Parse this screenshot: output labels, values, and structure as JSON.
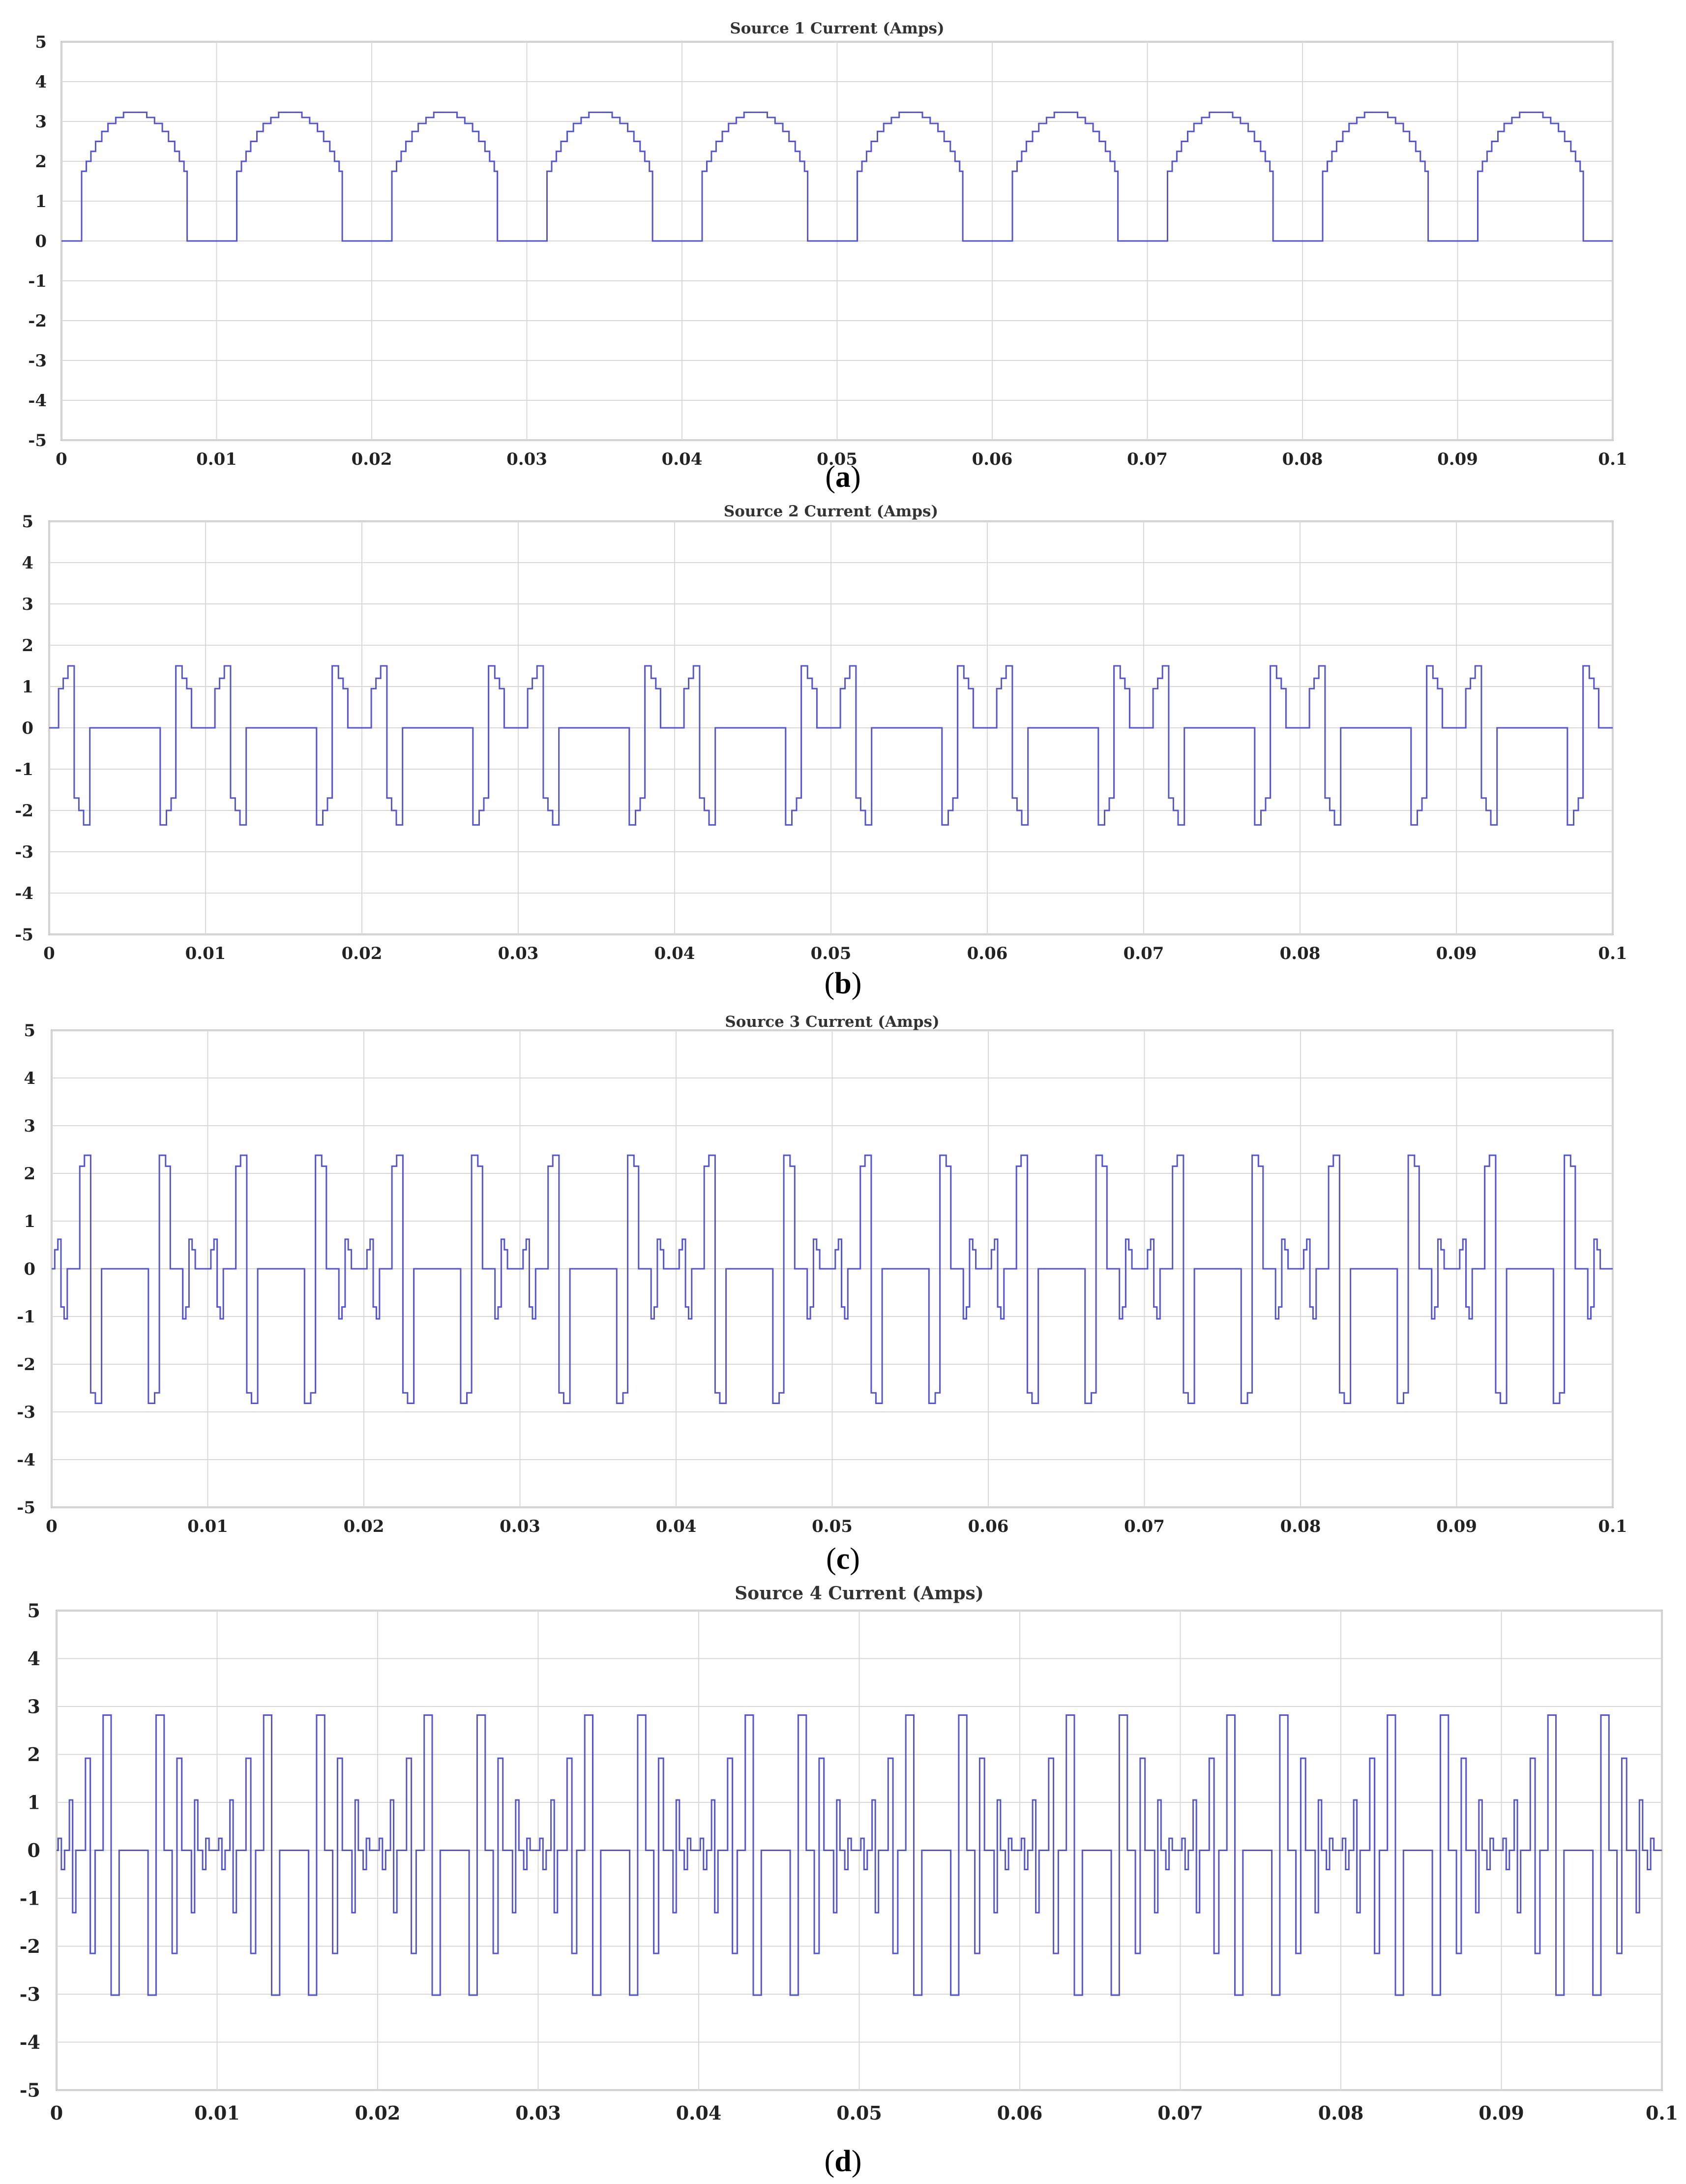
{
  "figure": {
    "captions": [
      "a",
      "b",
      "c",
      "d"
    ]
  },
  "chart_data": [
    {
      "type": "line",
      "title": "Source 1 Current (Amps)",
      "xlabel": "",
      "ylabel": "",
      "xlim": [
        0,
        0.1
      ],
      "ylim": [
        -5,
        5
      ],
      "grid": true,
      "x_ticks": [
        "0",
        "0.01",
        "0.02",
        "0.03",
        "0.04",
        "0.05",
        "0.06",
        "0.07",
        "0.08",
        "0.09",
        "0.1"
      ],
      "y_ticks": [
        "5",
        "4",
        "3",
        "2",
        "1",
        "0",
        "-1",
        "-2",
        "-3",
        "-4",
        "-5"
      ],
      "line_color": "#5555cc",
      "period": 0.01,
      "series": [
        {
          "name": "",
          "period_points": [
            [
              0,
              0
            ],
            [
              0.0013,
              0
            ],
            [
              0.0013,
              1.75
            ],
            [
              0.0016,
              1.75
            ],
            [
              0.0016,
              2.0
            ],
            [
              0.0019,
              2.0
            ],
            [
              0.0019,
              2.25
            ],
            [
              0.0022,
              2.25
            ],
            [
              0.0022,
              2.5
            ],
            [
              0.0026,
              2.5
            ],
            [
              0.0026,
              2.75
            ],
            [
              0.003,
              2.75
            ],
            [
              0.003,
              2.95
            ],
            [
              0.0035,
              2.95
            ],
            [
              0.0035,
              3.1
            ],
            [
              0.004,
              3.1
            ],
            [
              0.004,
              3.23
            ],
            [
              0.0055,
              3.23
            ],
            [
              0.0055,
              3.1
            ],
            [
              0.006,
              3.1
            ],
            [
              0.006,
              2.95
            ],
            [
              0.0065,
              2.95
            ],
            [
              0.0065,
              2.75
            ],
            [
              0.0069,
              2.75
            ],
            [
              0.0069,
              2.5
            ],
            [
              0.0073,
              2.5
            ],
            [
              0.0073,
              2.25
            ],
            [
              0.0076,
              2.25
            ],
            [
              0.0076,
              2.0
            ],
            [
              0.0079,
              2.0
            ],
            [
              0.0079,
              1.75
            ],
            [
              0.0081,
              1.75
            ],
            [
              0.0081,
              0
            ],
            [
              0.01,
              0
            ]
          ]
        }
      ]
    },
    {
      "type": "line",
      "title": "Source 2 Current (Amps)",
      "xlabel": "",
      "ylabel": "",
      "xlim": [
        0,
        0.1
      ],
      "ylim": [
        -5,
        5
      ],
      "grid": true,
      "x_ticks": [
        "0",
        "0.01",
        "0.02",
        "0.03",
        "0.04",
        "0.05",
        "0.06",
        "0.07",
        "0.08",
        "0.09",
        "0.1"
      ],
      "y_ticks": [
        "5",
        "4",
        "3",
        "2",
        "1",
        "0",
        "-1",
        "-2",
        "-3",
        "-4",
        "-5"
      ],
      "line_color": "#5555cc",
      "period": 0.01,
      "series": [
        {
          "name": "",
          "period_points": [
            [
              0,
              0
            ],
            [
              0.0006,
              0
            ],
            [
              0.0006,
              0.95
            ],
            [
              0.0009,
              0.95
            ],
            [
              0.0009,
              1.2
            ],
            [
              0.0012,
              1.2
            ],
            [
              0.0012,
              1.5
            ],
            [
              0.0016,
              1.5
            ],
            [
              0.0016,
              -1.7
            ],
            [
              0.0019,
              -1.7
            ],
            [
              0.0019,
              -2.0
            ],
            [
              0.0022,
              -2.0
            ],
            [
              0.0022,
              -2.35
            ],
            [
              0.0026,
              -2.35
            ],
            [
              0.0026,
              0
            ],
            [
              0.0071,
              0
            ],
            [
              0.0071,
              -2.35
            ],
            [
              0.0075,
              -2.35
            ],
            [
              0.0075,
              -2.0
            ],
            [
              0.0078,
              -2.0
            ],
            [
              0.0078,
              -1.7
            ],
            [
              0.0081,
              -1.7
            ],
            [
              0.0081,
              1.5
            ],
            [
              0.0085,
              1.5
            ],
            [
              0.0085,
              1.2
            ],
            [
              0.0088,
              1.2
            ],
            [
              0.0088,
              0.95
            ],
            [
              0.0091,
              0.95
            ],
            [
              0.0091,
              0
            ],
            [
              0.01,
              0
            ]
          ]
        }
      ]
    },
    {
      "type": "line",
      "title": "Source 3 Current (Amps)",
      "xlabel": "",
      "ylabel": "",
      "xlim": [
        0,
        0.1
      ],
      "ylim": [
        -5,
        5
      ],
      "grid": true,
      "x_ticks": [
        "0",
        "0.01",
        "0.02",
        "0.03",
        "0.04",
        "0.05",
        "0.06",
        "0.07",
        "0.08",
        "0.09",
        "0.1"
      ],
      "y_ticks": [
        "5",
        "4",
        "3",
        "2",
        "1",
        "0",
        "-1",
        "-2",
        "-3",
        "-4",
        "-5"
      ],
      "line_color": "#5555cc",
      "period": 0.01,
      "series": [
        {
          "name": "",
          "period_points": [
            [
              0,
              0
            ],
            [
              0.0002,
              0
            ],
            [
              0.0002,
              0.4
            ],
            [
              0.0004,
              0.4
            ],
            [
              0.0004,
              0.62
            ],
            [
              0.0006,
              0.62
            ],
            [
              0.0006,
              -0.8
            ],
            [
              0.0008,
              -0.8
            ],
            [
              0.0008,
              -1.05
            ],
            [
              0.001,
              -1.05
            ],
            [
              0.001,
              0
            ],
            [
              0.0018,
              0
            ],
            [
              0.0018,
              2.15
            ],
            [
              0.0021,
              2.15
            ],
            [
              0.0021,
              2.38
            ],
            [
              0.0025,
              2.38
            ],
            [
              0.0025,
              -2.6
            ],
            [
              0.0028,
              -2.6
            ],
            [
              0.0028,
              -2.82
            ],
            [
              0.0032,
              -2.82
            ],
            [
              0.0032,
              0
            ],
            [
              0.0062,
              0
            ],
            [
              0.0062,
              -2.82
            ],
            [
              0.0066,
              -2.82
            ],
            [
              0.0066,
              -2.6
            ],
            [
              0.0069,
              -2.6
            ],
            [
              0.0069,
              2.38
            ],
            [
              0.0073,
              2.38
            ],
            [
              0.0073,
              2.15
            ],
            [
              0.0076,
              2.15
            ],
            [
              0.0076,
              0
            ],
            [
              0.0084,
              0
            ],
            [
              0.0084,
              -1.05
            ],
            [
              0.0086,
              -1.05
            ],
            [
              0.0086,
              -0.8
            ],
            [
              0.0088,
              -0.8
            ],
            [
              0.0088,
              0.62
            ],
            [
              0.009,
              0.62
            ],
            [
              0.009,
              0.4
            ],
            [
              0.0092,
              0.4
            ],
            [
              0.0092,
              0
            ],
            [
              0.01,
              0
            ]
          ]
        }
      ]
    },
    {
      "type": "line",
      "title": "Source 4 Current (Amps)",
      "xlabel": "",
      "ylabel": "",
      "xlim": [
        0,
        0.1
      ],
      "ylim": [
        -5,
        5
      ],
      "grid": true,
      "x_ticks": [
        "0",
        "0.01",
        "0.02",
        "0.03",
        "0.04",
        "0.05",
        "0.06",
        "0.07",
        "0.08",
        "0.09",
        "0.1"
      ],
      "y_ticks": [
        "5",
        "4",
        "3",
        "2",
        "1",
        "0",
        "-1",
        "-2",
        "-3",
        "-4",
        "-5"
      ],
      "line_color": "#5555cc",
      "period": 0.01,
      "series": [
        {
          "name": "",
          "period_points": [
            [
              0,
              0
            ],
            [
              0.0001,
              0
            ],
            [
              0.0001,
              0.25
            ],
            [
              0.0003,
              0.25
            ],
            [
              0.0003,
              -0.4
            ],
            [
              0.0005,
              -0.4
            ],
            [
              0.0005,
              0
            ],
            [
              0.0008,
              0
            ],
            [
              0.0008,
              1.05
            ],
            [
              0.001,
              1.05
            ],
            [
              0.001,
              -1.3
            ],
            [
              0.0012,
              -1.3
            ],
            [
              0.0012,
              0
            ],
            [
              0.0018,
              0
            ],
            [
              0.0018,
              1.92
            ],
            [
              0.0021,
              1.92
            ],
            [
              0.0021,
              -2.15
            ],
            [
              0.0024,
              -2.15
            ],
            [
              0.0024,
              0
            ],
            [
              0.0029,
              0
            ],
            [
              0.0029,
              2.82
            ],
            [
              0.0034,
              2.82
            ],
            [
              0.0034,
              -3.02
            ],
            [
              0.0039,
              -3.02
            ],
            [
              0.0039,
              0
            ],
            [
              0.0057,
              0
            ],
            [
              0.0057,
              -3.02
            ],
            [
              0.0062,
              -3.02
            ],
            [
              0.0062,
              2.82
            ],
            [
              0.0067,
              2.82
            ],
            [
              0.0067,
              0
            ],
            [
              0.0072,
              0
            ],
            [
              0.0072,
              -2.15
            ],
            [
              0.0075,
              -2.15
            ],
            [
              0.0075,
              1.92
            ],
            [
              0.0078,
              1.92
            ],
            [
              0.0078,
              0
            ],
            [
              0.0084,
              0
            ],
            [
              0.0084,
              -1.3
            ],
            [
              0.0086,
              -1.3
            ],
            [
              0.0086,
              1.05
            ],
            [
              0.0088,
              1.05
            ],
            [
              0.0088,
              0
            ],
            [
              0.0091,
              0
            ],
            [
              0.0091,
              -0.4
            ],
            [
              0.0093,
              -0.4
            ],
            [
              0.0093,
              0.25
            ],
            [
              0.0095,
              0.25
            ],
            [
              0.0095,
              0
            ],
            [
              0.01,
              0
            ]
          ]
        }
      ]
    }
  ]
}
